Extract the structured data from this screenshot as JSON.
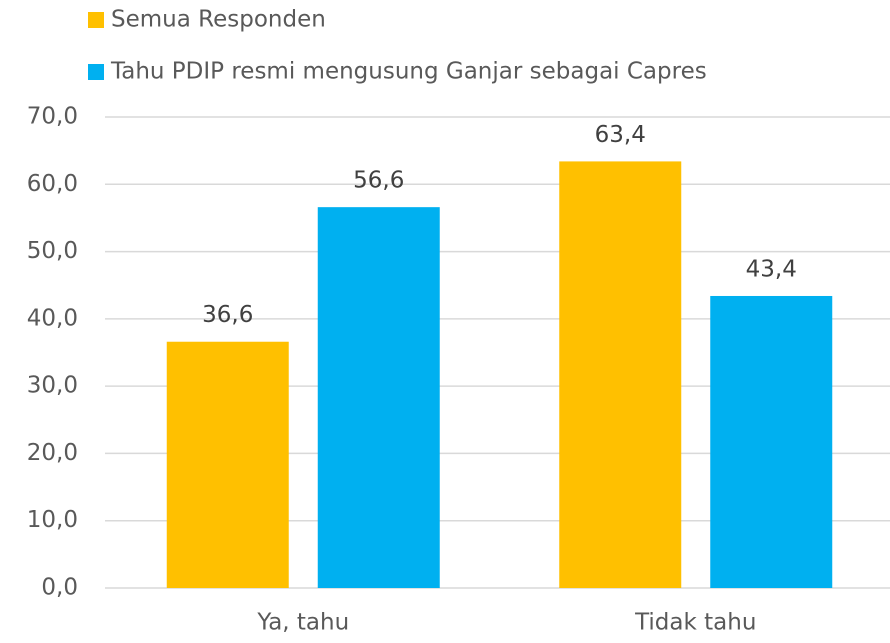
{
  "chart_data": {
    "type": "bar",
    "categories": [
      "Ya, tahu",
      "Tidak tahu"
    ],
    "series": [
      {
        "name": "Semua Responden",
        "color": "#ffc000",
        "values": [
          36.6,
          63.4
        ],
        "value_labels": [
          "36,6",
          "63,4"
        ]
      },
      {
        "name": "Tahu PDIP resmi mengusung Ganjar sebagai Capres",
        "color": "#00b0f0",
        "values": [
          56.6,
          43.4
        ],
        "value_labels": [
          "56,6",
          "43,4"
        ]
      }
    ],
    "ylim": [
      0,
      70
    ],
    "yticks": [
      {
        "value": 0,
        "label": "0,0"
      },
      {
        "value": 10,
        "label": "10,0"
      },
      {
        "value": 20,
        "label": "20,0"
      },
      {
        "value": 30,
        "label": "30,0"
      },
      {
        "value": 40,
        "label": "40,0"
      },
      {
        "value": 50,
        "label": "50,0"
      },
      {
        "value": 60,
        "label": "60,0"
      },
      {
        "value": 70,
        "label": "70,0"
      }
    ],
    "grid": true,
    "legend": "top-left"
  }
}
